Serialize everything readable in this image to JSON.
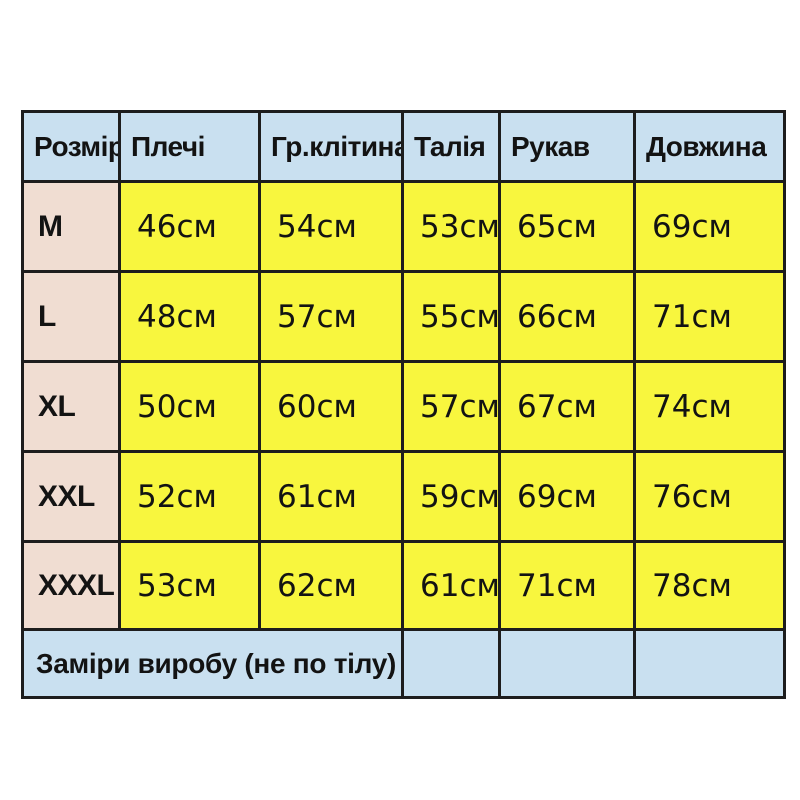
{
  "colors": {
    "page_bg": "#ffffff",
    "header_bg": "#c9e0f0",
    "size_bg": "#f0ddd2",
    "data_bg": "#f8f63e",
    "border": "#1d1d1d",
    "text": "#131313"
  },
  "chart_data": {
    "type": "table",
    "title": "",
    "columns": [
      "Розмір",
      "Плечі",
      "Гр.клітина",
      "Талія",
      "Рукав",
      "Довжина"
    ],
    "rows": [
      {
        "size": "M",
        "values": [
          "46см",
          "54см",
          "53см",
          "65см",
          "69см"
        ]
      },
      {
        "size": "L",
        "values": [
          "48см",
          "57см",
          "55см",
          "66см",
          "71см"
        ]
      },
      {
        "size": "XL",
        "values": [
          "50см",
          "60см",
          "57см",
          "67см",
          "74см"
        ]
      },
      {
        "size": "XXL",
        "values": [
          "52см",
          "61см",
          "59см",
          "69см",
          "76см"
        ]
      },
      {
        "size": "XXXL",
        "values": [
          "53см",
          "62см",
          "61см",
          "71см",
          "78см"
        ]
      }
    ],
    "footer_note": "Заміри виробу (не по тілу)",
    "unit_suffix": "см"
  }
}
